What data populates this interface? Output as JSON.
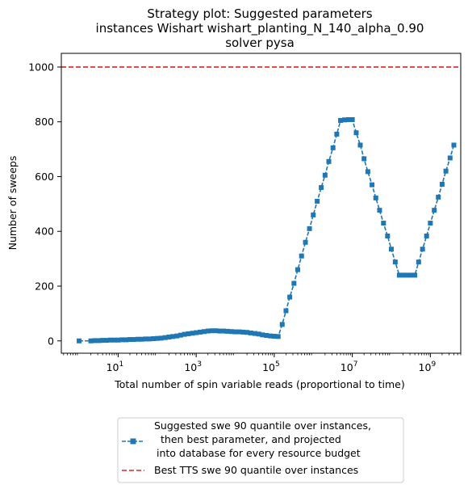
{
  "chart_data": {
    "type": "line",
    "title_lines": [
      "Strategy plot: Suggested parameters",
      "instances Wishart wishart_planting_N_140_alpha_0.90",
      "solver pysa"
    ],
    "xlabel": "Total number of spin variable reads (proportional to time)",
    "ylabel": "Number of sweeps",
    "x_scale": "log",
    "xlim": [
      0.35,
      6000000000.0
    ],
    "ylim": [
      -45,
      1050
    ],
    "x_ticks": [
      {
        "value": 10,
        "base": "10",
        "exp": "1"
      },
      {
        "value": 1000,
        "base": "10",
        "exp": "3"
      },
      {
        "value": 100000,
        "base": "10",
        "exp": "5"
      },
      {
        "value": 10000000,
        "base": "10",
        "exp": "7"
      },
      {
        "value": 1000000000,
        "base": "10",
        "exp": "9"
      }
    ],
    "y_ticks": [
      0,
      200,
      400,
      600,
      800,
      1000
    ],
    "legend": {
      "position": "below-center",
      "entries": [
        {
          "lines": [
            "Suggested swe 90 quantile over instances,",
            "then best parameter, and projected",
            "into database for every resource budget"
          ],
          "style": "line-square-marker"
        },
        {
          "lines": [
            "Best TTS swe 90 quantile over instances"
          ],
          "style": "dashed"
        }
      ]
    },
    "series": [
      {
        "color": "#1f77b4",
        "marker": "square",
        "line_style": "dashed",
        "points": [
          [
            1.0,
            0
          ],
          [
            2.0,
            0
          ],
          [
            2.5,
            1
          ],
          [
            3.2,
            1
          ],
          [
            4.0,
            2
          ],
          [
            5.0,
            2
          ],
          [
            6.3,
            3
          ],
          [
            8.0,
            3
          ],
          [
            10,
            3
          ],
          [
            12.6,
            4
          ],
          [
            16,
            4
          ],
          [
            20,
            5
          ],
          [
            25,
            5
          ],
          [
            32,
            6
          ],
          [
            40,
            6
          ],
          [
            50,
            7
          ],
          [
            63,
            7
          ],
          [
            80,
            8
          ],
          [
            100,
            9
          ],
          [
            126,
            10
          ],
          [
            160,
            12
          ],
          [
            200,
            14
          ],
          [
            250,
            16
          ],
          [
            320,
            18
          ],
          [
            400,
            21
          ],
          [
            500,
            24
          ],
          [
            630,
            26
          ],
          [
            800,
            28
          ],
          [
            1000,
            30
          ],
          [
            1260,
            32
          ],
          [
            1600,
            34
          ],
          [
            2000,
            36
          ],
          [
            2500,
            37
          ],
          [
            3200,
            37
          ],
          [
            4000,
            36
          ],
          [
            5000,
            36
          ],
          [
            6300,
            35
          ],
          [
            8000,
            34
          ],
          [
            10000,
            33
          ],
          [
            12600,
            33
          ],
          [
            16000,
            32
          ],
          [
            20000,
            31
          ],
          [
            25000,
            29
          ],
          [
            32000,
            27
          ],
          [
            40000,
            25
          ],
          [
            50000,
            22
          ],
          [
            63000,
            20
          ],
          [
            80000,
            18
          ],
          [
            100000,
            17
          ],
          [
            126000,
            16
          ],
          [
            160000,
            60
          ],
          [
            200000,
            110
          ],
          [
            250000,
            160
          ],
          [
            320000,
            210
          ],
          [
            400000,
            260
          ],
          [
            500000,
            310
          ],
          [
            630000,
            360
          ],
          [
            800000,
            410
          ],
          [
            1000000,
            460
          ],
          [
            1260000,
            510
          ],
          [
            1600000,
            560
          ],
          [
            2000000,
            605
          ],
          [
            2500000,
            655
          ],
          [
            3200000,
            705
          ],
          [
            4000000,
            755
          ],
          [
            5000000,
            805
          ],
          [
            6300000,
            807
          ],
          [
            8000000,
            808
          ],
          [
            10000000,
            808
          ],
          [
            12600000,
            760
          ],
          [
            16000000,
            715
          ],
          [
            20000000,
            665
          ],
          [
            25000000,
            618
          ],
          [
            32000000,
            570
          ],
          [
            40000000,
            522
          ],
          [
            50000000,
            477
          ],
          [
            63000000,
            430
          ],
          [
            80000000,
            383
          ],
          [
            100000000,
            335
          ],
          [
            126000000,
            288
          ],
          [
            160000000,
            240
          ],
          [
            200000000,
            240
          ],
          [
            250000000,
            240
          ],
          [
            320000000,
            240
          ],
          [
            400000000,
            240
          ],
          [
            500000000,
            288
          ],
          [
            630000000,
            335
          ],
          [
            800000000,
            383
          ],
          [
            1000000000,
            430
          ],
          [
            1260000000,
            477
          ],
          [
            1600000000,
            525
          ],
          [
            2000000000,
            572
          ],
          [
            2500000000,
            620
          ],
          [
            3200000000,
            668
          ],
          [
            4000000000,
            715
          ]
        ]
      },
      {
        "color": "#d62728",
        "line_style": "dashed",
        "y_constant": 1000
      }
    ]
  }
}
